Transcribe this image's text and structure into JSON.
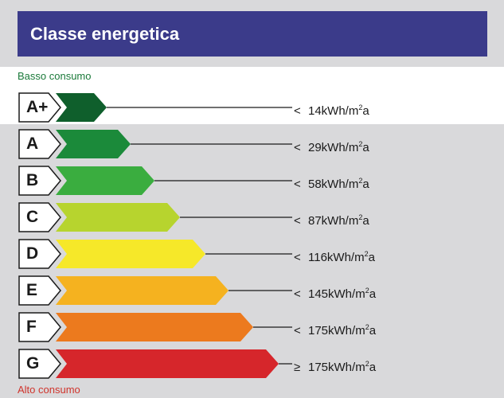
{
  "title": "Classe energetica",
  "low_label": "Basso consumo",
  "high_label": "Alto consumo",
  "colors": {
    "header": "#3b3b8a",
    "background": "#d9d9db",
    "highlight": "#ffffff"
  },
  "classes": [
    {
      "letter": "A+",
      "operator": "<",
      "value": "14kWh/m",
      "superscript": "2",
      "suffix": "a",
      "color": "#0f5f2c"
    },
    {
      "letter": "A",
      "operator": "<",
      "value": "29kWh/m",
      "superscript": "2",
      "suffix": "a",
      "color": "#1b8a3a"
    },
    {
      "letter": "B",
      "operator": "<",
      "value": "58kWh/m",
      "superscript": "2",
      "suffix": "a",
      "color": "#3aad3f"
    },
    {
      "letter": "C",
      "operator": "<",
      "value": "87kWh/m",
      "superscript": "2",
      "suffix": "a",
      "color": "#b7d42e"
    },
    {
      "letter": "D",
      "operator": "<",
      "value": "116kWh/m",
      "superscript": "2",
      "suffix": "a",
      "color": "#f6e829"
    },
    {
      "letter": "E",
      "operator": "<",
      "value": "145kWh/m",
      "superscript": "2",
      "suffix": "a",
      "color": "#f5b21f"
    },
    {
      "letter": "F",
      "operator": "<",
      "value": "175kWh/m",
      "superscript": "2",
      "suffix": "a",
      "color": "#ec7a1e"
    },
    {
      "letter": "G",
      "operator": "≥",
      "value": "175kWh/m",
      "superscript": "2",
      "suffix": "a",
      "color": "#d6262b"
    }
  ]
}
